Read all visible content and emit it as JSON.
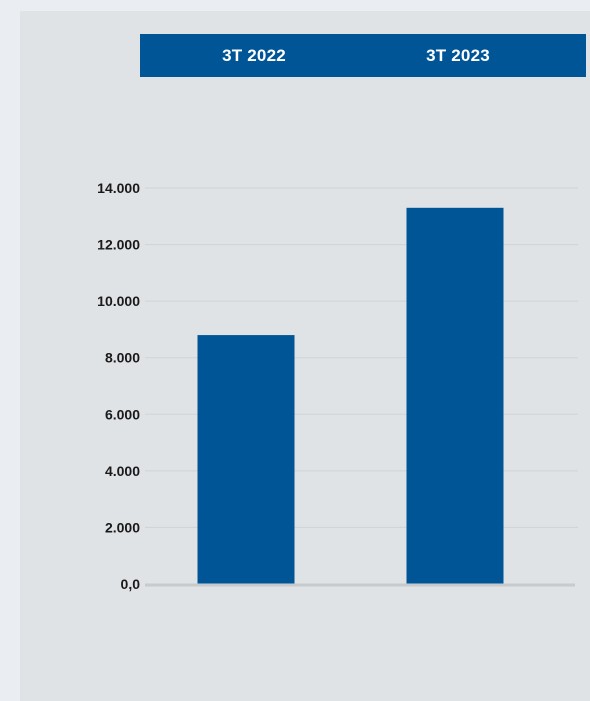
{
  "colors": {
    "background": "#eaeef2",
    "panel": "#e0e3e6",
    "accent": "#005596",
    "grid": "#cfd3d7",
    "baseline": "#c8cbce"
  },
  "chart_data": {
    "type": "bar",
    "categories": [
      "3T 2022",
      "3T 2023"
    ],
    "values": [
      8800,
      13300
    ],
    "ylim": [
      0,
      14000
    ],
    "yticks": [
      0,
      2000,
      4000,
      6000,
      8000,
      10000,
      12000,
      14000
    ],
    "ytick_labels": [
      "0,0",
      "2.000",
      "4.000",
      "6.000",
      "8.000",
      "10.000",
      "12.000",
      "14.000"
    ],
    "legend_position": "top",
    "grid": true,
    "title": "",
    "xlabel": "",
    "ylabel": ""
  }
}
